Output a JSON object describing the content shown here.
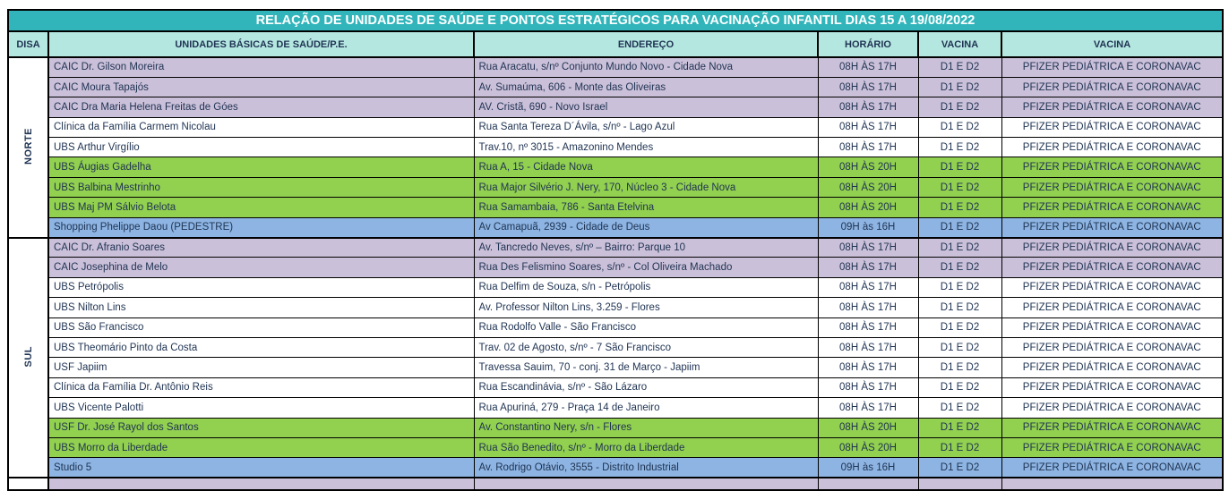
{
  "title": "RELAÇÃO DE UNIDADES DE SAÚDE E PONTOS ESTRATÉGICOS PARA VACINAÇÃO INFANTIL DIAS 15 A 19/08/2022",
  "columns": {
    "disa": "DISA",
    "unit": "UNIDADES BÁSICAS DE SAÚDE/P.E.",
    "address": "ENDEREÇO",
    "hours": "HORÁRIO",
    "doses": "VACINA",
    "vaccine": "VACINA"
  },
  "groups": [
    {
      "disa": "NORTE",
      "rows": [
        {
          "unit": "CAIC Dr. Gilson Moreira",
          "address": "Rua Aracatu, s/nº Conjunto Mundo Novo - Cidade Nova",
          "hours": "08H ÀS 17H",
          "doses": "D1 E D2",
          "vaccine": "PFIZER PEDIÁTRICA E CORONAVAC",
          "color": "purple"
        },
        {
          "unit": "CAIC Moura Tapajós",
          "address": "Av. Sumaúma, 606 - Monte das Oliveiras",
          "hours": "08H ÀS 17H",
          "doses": "D1 E D2",
          "vaccine": "PFIZER PEDIÁTRICA E CORONAVAC",
          "color": "purple"
        },
        {
          "unit": "CAIC Dra Maria Helena Freitas de Góes",
          "address": "AV. Cristã, 690 - Novo Israel",
          "hours": "08H ÀS 17H",
          "doses": "D1 E D2",
          "vaccine": "PFIZER PEDIÁTRICA E CORONAVAC",
          "color": "purple"
        },
        {
          "unit": "Clínica da Família Carmem Nicolau",
          "address": "Rua Santa Tereza D´Ávila, s/nº - Lago Azul",
          "hours": "08H ÀS 17H",
          "doses": "D1 E D2",
          "vaccine": "PFIZER PEDIÁTRICA E CORONAVAC",
          "color": "white"
        },
        {
          "unit": "UBS Arthur Virgílio",
          "address": "Trav.10, nº 3015 - Amazonino Mendes",
          "hours": "08H ÀS 17H",
          "doses": "D1 E D2",
          "vaccine": "PFIZER PEDIÁTRICA E CORONAVAC",
          "color": "white"
        },
        {
          "unit": "UBS Áugias Gadelha",
          "address": "Rua A, 15 - Cidade Nova",
          "hours": "08H ÀS 20H",
          "doses": "D1 E D2",
          "vaccine": "PFIZER PEDIÁTRICA E CORONAVAC",
          "color": "green"
        },
        {
          "unit": "UBS Balbina Mestrinho",
          "address": "Rua Major Silvério J. Nery, 170, Núcleo 3 - Cidade Nova",
          "hours": "08H ÀS 20H",
          "doses": "D1 E D2",
          "vaccine": "PFIZER PEDIÁTRICA E CORONAVAC",
          "color": "green"
        },
        {
          "unit": "UBS Maj PM Sálvio Belota",
          "address": "Rua Samambaia, 786 - Santa Etelvina",
          "hours": "08H ÀS 20H",
          "doses": "D1 E D2",
          "vaccine": "PFIZER PEDIÁTRICA E CORONAVAC",
          "color": "green"
        },
        {
          "unit": "Shopping Phelippe Daou (PEDESTRE)",
          "address": "Av Camapuã, 2939 - Cidade de Deus",
          "hours": "09H às 16H",
          "doses": "D1 E D2",
          "vaccine": "PFIZER PEDIÁTRICA E CORONAVAC",
          "color": "blue"
        }
      ]
    },
    {
      "disa": "SUL",
      "rows": [
        {
          "unit": "CAIC Dr. Afranio Soares",
          "address": "Av. Tancredo Neves, s/nº – Bairro: Parque 10",
          "hours": "08H ÀS 17H",
          "doses": "D1 E D2",
          "vaccine": "PFIZER PEDIÁTRICA E CORONAVAC",
          "color": "purple"
        },
        {
          "unit": "CAIC Josephina de Melo",
          "address": "Rua Des Felismino Soares, s/nº - Col Oliveira Machado",
          "hours": "08H ÀS 17H",
          "doses": "D1 E D2",
          "vaccine": "PFIZER PEDIÁTRICA E CORONAVAC",
          "color": "purple"
        },
        {
          "unit": "UBS Petrópolis",
          "address": "Rua Delfim de Souza, s/n - Petrópolis",
          "hours": "08H ÀS 17H",
          "doses": "D1 E D2",
          "vaccine": "PFIZER PEDIÁTRICA E CORONAVAC",
          "color": "white"
        },
        {
          "unit": "UBS Nilton Lins",
          "address": "Av. Professor Nilton Lins, 3.259 - Flores",
          "hours": "08H ÀS 17H",
          "doses": "D1 E D2",
          "vaccine": "PFIZER PEDIÁTRICA E CORONAVAC",
          "color": "white"
        },
        {
          "unit": "UBS São Francisco",
          "address": "Rua Rodolfo Valle - São Francisco",
          "hours": "08H ÀS 17H",
          "doses": "D1 E D2",
          "vaccine": "PFIZER PEDIÁTRICA E CORONAVAC",
          "color": "white"
        },
        {
          "unit": "UBS Theomário Pinto da Costa",
          "address": "Trav. 02 de Agosto, s/nº - 7 São Francisco",
          "hours": "08H ÀS 17H",
          "doses": "D1 E D2",
          "vaccine": "PFIZER PEDIÁTRICA E CORONAVAC",
          "color": "white"
        },
        {
          "unit": "USF Japiim",
          "address": "Travessa Sauim, 70 - conj. 31 de Março - Japiim",
          "hours": "08H ÀS 17H",
          "doses": "D1 E D2",
          "vaccine": "PFIZER PEDIÁTRICA E CORONAVAC",
          "color": "white"
        },
        {
          "unit": "Clínica da Família Dr. Antônio Reis",
          "address": "Rua Escandinávia, s/nº - São Lázaro",
          "hours": "08H ÀS 17H",
          "doses": "D1 E D2",
          "vaccine": "PFIZER PEDIÁTRICA E CORONAVAC",
          "color": "white"
        },
        {
          "unit": "UBS Vicente Palotti",
          "address": "Rua Apuriná, 279 - Praça 14 de Janeiro",
          "hours": "08H ÀS 17H",
          "doses": "D1 E D2",
          "vaccine": "PFIZER PEDIÁTRICA E CORONAVAC",
          "color": "white"
        },
        {
          "unit": "USF Dr. José Rayol dos Santos",
          "address": "Av. Constantino Nery, s/n - Flores",
          "hours": "08H ÀS 20H",
          "doses": "D1 E D2",
          "vaccine": "PFIZER PEDIÁTRICA E CORONAVAC",
          "color": "green"
        },
        {
          "unit": "UBS Morro da Liberdade",
          "address": "Rua São Benedito, s/nº - Morro da Liberdade",
          "hours": "08H ÀS 20H",
          "doses": "D1 E D2",
          "vaccine": "PFIZER PEDIÁTRICA E CORONAVAC",
          "color": "green"
        },
        {
          "unit": "Studio 5",
          "address": "Av. Rodrigo Otávio, 3555 - Distrito Industrial",
          "hours": "09H às 16H",
          "doses": "D1 E D2",
          "vaccine": "PFIZER PEDIÁTRICA E CORONAVAC",
          "color": "blue"
        }
      ]
    }
  ],
  "partial_row": {
    "color": "purple"
  },
  "colors": {
    "title-bg": "#31B5BB",
    "title-text": "#FFFFFF",
    "header-bg": "#B5E7E1",
    "row-purple": "#CBC0D9",
    "row-green": "#92D050",
    "row-blue": "#8DB4E2",
    "row-white": "#FFFFFF",
    "border": "#000000",
    "text": "#1F3352"
  }
}
